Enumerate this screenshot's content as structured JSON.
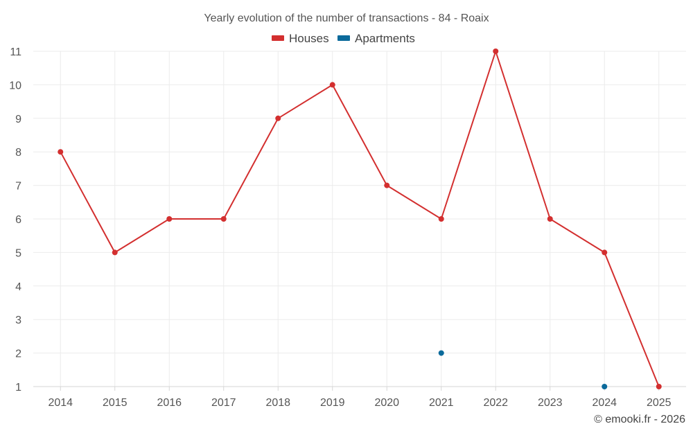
{
  "chart_data": {
    "type": "line",
    "title": "Yearly evolution of the number of transactions - 84 - Roaix",
    "categories": [
      "2014",
      "2015",
      "2016",
      "2017",
      "2018",
      "2019",
      "2020",
      "2021",
      "2022",
      "2023",
      "2024",
      "2025"
    ],
    "series": [
      {
        "name": "Houses",
        "color": "#d32f2f",
        "values": [
          8,
          5,
          6,
          6,
          9,
          10,
          7,
          6,
          11,
          6,
          5,
          1
        ]
      },
      {
        "name": "Apartments",
        "color": "#0b6a9b",
        "values": [
          null,
          null,
          null,
          null,
          null,
          null,
          null,
          2,
          null,
          null,
          1,
          null
        ]
      }
    ],
    "y_ticks": [
      "1",
      "2",
      "3",
      "4",
      "5",
      "6",
      "7",
      "8",
      "9",
      "10",
      "11"
    ],
    "ylim": [
      1,
      11
    ],
    "grid": true,
    "legend_position": "top-center",
    "xlabel": "",
    "ylabel": ""
  },
  "credit": "© emooki.fr - 2026"
}
